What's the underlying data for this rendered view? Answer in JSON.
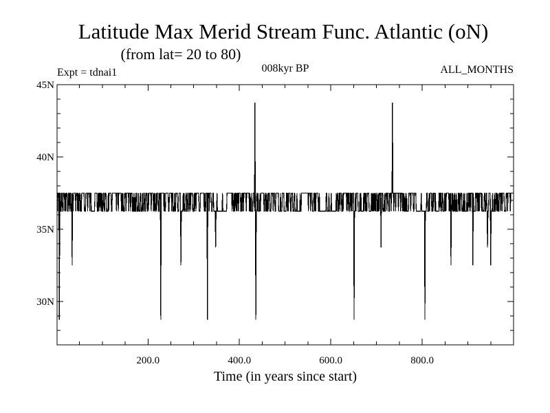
{
  "chart_data": {
    "type": "line",
    "title": "Latitude Max Merid Stream Func. Atlantic (oN)",
    "subtitle": "(from lat= 20 to 80)",
    "experiment": "Expt = tdnai1",
    "period": "008kyr BP",
    "season": "ALL_MONTHS",
    "xlabel": "Time (in years since start)",
    "ylabel": "",
    "xlim": [
      1,
      1000
    ],
    "ylim": [
      27,
      45
    ],
    "x_ticks": [
      {
        "value": 200,
        "label": "200.0"
      },
      {
        "value": 400,
        "label": "400.0"
      },
      {
        "value": 600,
        "label": "600.0"
      },
      {
        "value": 800,
        "label": "800.0"
      }
    ],
    "y_ticks": [
      {
        "value": 30,
        "label": "30N"
      },
      {
        "value": 35,
        "label": "35N"
      },
      {
        "value": 40,
        "label": "40N"
      },
      {
        "value": 45,
        "label": "45N"
      }
    ],
    "baseline_levels": [
      36.25,
      37.5
    ],
    "series": [
      {
        "name": "Latitude of max meridional stream function",
        "spikes": [
          {
            "x": 6,
            "value": 28.75
          },
          {
            "x": 34,
            "value": 32.5
          },
          {
            "x": 228,
            "value": 28.75
          },
          {
            "x": 272,
            "value": 32.5
          },
          {
            "x": 330,
            "value": 28.75
          },
          {
            "x": 348,
            "value": 33.75
          },
          {
            "x": 434,
            "value": 43.75
          },
          {
            "x": 436,
            "value": 28.75
          },
          {
            "x": 651,
            "value": 28.75
          },
          {
            "x": 710,
            "value": 33.75
          },
          {
            "x": 735,
            "value": 43.75
          },
          {
            "x": 806,
            "value": 28.75
          },
          {
            "x": 863,
            "value": 32.5
          },
          {
            "x": 911,
            "value": 32.5
          },
          {
            "x": 943,
            "value": 33.75
          },
          {
            "x": 950,
            "value": 32.5
          }
        ]
      }
    ]
  }
}
